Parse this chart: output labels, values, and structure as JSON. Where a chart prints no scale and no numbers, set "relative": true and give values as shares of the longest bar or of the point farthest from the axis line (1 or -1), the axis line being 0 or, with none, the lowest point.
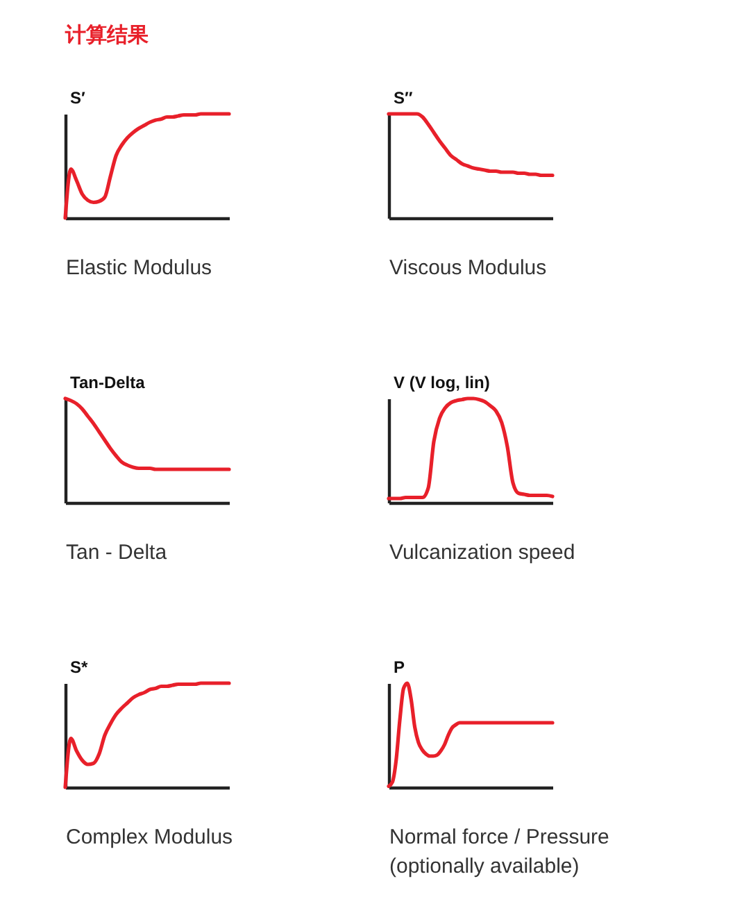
{
  "chart_data": [
    {
      "type": "line",
      "title": "计算结果",
      "ylabel": "S′",
      "xlabel": "Elastic Modulus",
      "relative": true,
      "color": "#e8202a",
      "categories": [
        null,
        null,
        null,
        null,
        null,
        null,
        null,
        null,
        null,
        null,
        null,
        null,
        null,
        null,
        null,
        null,
        null,
        null,
        null,
        null,
        null,
        null,
        null,
        null,
        null,
        null,
        null,
        null,
        null,
        null
      ],
      "values": [
        0,
        0.47,
        0.36,
        0.23,
        0.17,
        0.15,
        0.16,
        0.2,
        0.4,
        0.6,
        0.7,
        0.77,
        0.82,
        0.86,
        0.89,
        0.92,
        0.94,
        0.95,
        0.97,
        0.97,
        0.98,
        0.99,
        0.99,
        0.99,
        1,
        1,
        1,
        1,
        1,
        1
      ]
    },
    {
      "type": "line",
      "ylabel": "S″",
      "xlabel": "Viscous Modulus",
      "relative": true,
      "color": "#e8202a",
      "categories": [
        null,
        null,
        null,
        null,
        null,
        null,
        null,
        null,
        null,
        null,
        null,
        null,
        null,
        null,
        null,
        null,
        null,
        null,
        null,
        null,
        null,
        null,
        null,
        null,
        null,
        null,
        null,
        null,
        null,
        null
      ],
      "values": [
        1,
        1,
        1,
        1,
        1,
        1,
        0.97,
        0.9,
        0.82,
        0.74,
        0.67,
        0.6,
        0.56,
        0.52,
        0.5,
        0.48,
        0.47,
        0.46,
        0.45,
        0.45,
        0.44,
        0.44,
        0.44,
        0.43,
        0.43,
        0.42,
        0.42,
        0.41,
        0.41,
        0.41
      ]
    },
    {
      "type": "line",
      "ylabel": "Tan-Delta",
      "xlabel": "Tan - Delta",
      "relative": true,
      "color": "#e8202a",
      "categories": [
        null,
        null,
        null,
        null,
        null,
        null,
        null,
        null,
        null,
        null,
        null,
        null,
        null,
        null,
        null,
        null,
        null,
        null,
        null,
        null,
        null,
        null,
        null,
        null,
        null,
        null,
        null,
        null,
        null,
        null
      ],
      "values": [
        1,
        0.98,
        0.95,
        0.9,
        0.83,
        0.76,
        0.68,
        0.6,
        0.52,
        0.45,
        0.39,
        0.36,
        0.34,
        0.33,
        0.33,
        0.33,
        0.32,
        0.32,
        0.32,
        0.32,
        0.32,
        0.32,
        0.32,
        0.32,
        0.32,
        0.32,
        0.32,
        0.32,
        0.32,
        0.32
      ]
    },
    {
      "type": "line",
      "ylabel": "V (V log, lin)",
      "xlabel": "Vulcanization speed",
      "relative": true,
      "color": "#e8202a",
      "categories": [
        null,
        null,
        null,
        null,
        null,
        null,
        null,
        null,
        null,
        null,
        null,
        null,
        null,
        null,
        null,
        null,
        null,
        null,
        null,
        null,
        null,
        null,
        null,
        null,
        null,
        null,
        null,
        null,
        null,
        null
      ],
      "values": [
        0.04,
        0.04,
        0.04,
        0.05,
        0.05,
        0.05,
        0.05,
        0.14,
        0.59,
        0.81,
        0.91,
        0.96,
        0.98,
        0.99,
        1,
        1,
        0.99,
        0.97,
        0.93,
        0.88,
        0.77,
        0.54,
        0.19,
        0.09,
        0.08,
        0.07,
        0.07,
        0.07,
        0.07,
        0.06
      ]
    },
    {
      "type": "line",
      "ylabel": "S*",
      "xlabel": "Complex Modulus",
      "relative": true,
      "color": "#e8202a",
      "categories": [
        null,
        null,
        null,
        null,
        null,
        null,
        null,
        null,
        null,
        null,
        null,
        null,
        null,
        null,
        null,
        null,
        null,
        null,
        null,
        null,
        null,
        null,
        null,
        null,
        null,
        null,
        null,
        null,
        null,
        null
      ],
      "values": [
        0,
        0.47,
        0.35,
        0.26,
        0.22,
        0.23,
        0.32,
        0.5,
        0.61,
        0.7,
        0.76,
        0.81,
        0.86,
        0.89,
        0.91,
        0.94,
        0.95,
        0.97,
        0.97,
        0.98,
        0.99,
        0.99,
        0.99,
        0.99,
        1,
        1,
        1,
        1,
        1,
        1
      ]
    },
    {
      "type": "line",
      "ylabel": "P",
      "xlabel": "Normal force / Pressure\n(optionally available)",
      "relative": true,
      "color": "#e8202a",
      "categories": [
        null,
        null,
        null,
        null,
        null,
        null,
        null,
        null,
        null,
        null,
        null,
        null,
        null,
        null,
        null,
        null,
        null,
        null,
        null,
        null,
        null,
        null,
        null,
        null,
        null,
        null,
        null,
        null,
        null,
        null,
        null,
        null,
        null,
        null,
        null,
        null,
        null,
        null,
        null,
        null,
        null,
        null,
        null,
        null,
        null
      ],
      "values": [
        0.01,
        0.05,
        0.26,
        0.65,
        0.95,
        1,
        0.85,
        0.58,
        0.43,
        0.36,
        0.32,
        0.3,
        0.3,
        0.31,
        0.35,
        0.41,
        0.5,
        0.57,
        0.6,
        0.62,
        0.62,
        0.62,
        0.62,
        0.62,
        0.62,
        0.62,
        0.62,
        0.62,
        0.62,
        0.62,
        0.62,
        0.62,
        0.62,
        0.62,
        0.62,
        0.62,
        0.62,
        0.62,
        0.62,
        0.62,
        0.62,
        0.62,
        0.62,
        0.62,
        0.62
      ]
    }
  ]
}
